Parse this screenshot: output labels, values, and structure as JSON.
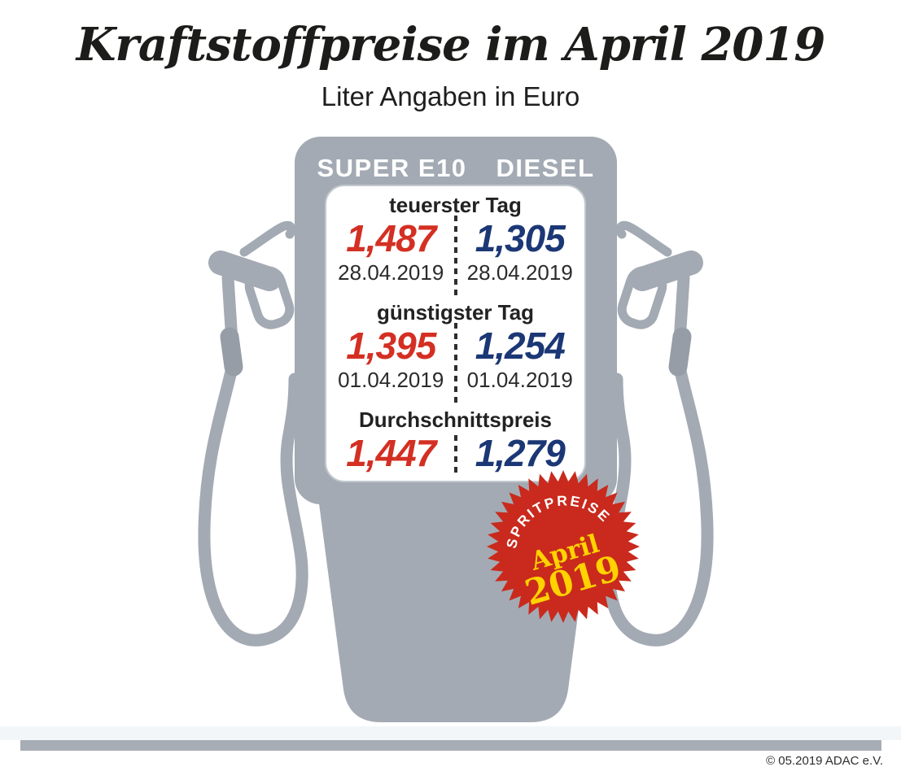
{
  "title": "Kraftstoffpreise im April 2019",
  "subtitle": "Liter Angaben in Euro",
  "pump": {
    "col_left": "SUPER E10",
    "col_right": "DIESEL",
    "sections": [
      {
        "label": "teuerster Tag",
        "e10": "1,487",
        "diesel": "1,305",
        "e10_date": "28.04.2019",
        "diesel_date": "28.04.2019"
      },
      {
        "label": "günstigster Tag",
        "e10": "1,395",
        "diesel": "1,254",
        "e10_date": "01.04.2019",
        "diesel_date": "01.04.2019"
      },
      {
        "label": "Durchschnittspreis",
        "e10": "1,447",
        "diesel": "1,279"
      }
    ]
  },
  "badge": {
    "arc_text": "SPRITPREISE",
    "line1": "April",
    "line2": "2019"
  },
  "footer": {
    "copyright": "© 05.2019 ADAC e.V."
  },
  "colors": {
    "super_e10_red": "#d42f23",
    "diesel_blue": "#1b3775",
    "pump_gray": "#a3aab3",
    "badge_red": "#c92a1d",
    "badge_yellow": "#ffd200",
    "footer_bar_gray": "#a7adb5"
  },
  "icons": [
    "fuel-pump-icon",
    "fuel-nozzle-icon",
    "starburst-badge-icon"
  ],
  "chart_data": {
    "type": "table",
    "title": "Kraftstoffpreise im April 2019",
    "subtitle": "Liter Angaben in Euro",
    "unit": "Euro",
    "columns": [
      "SUPER E10",
      "DIESEL"
    ],
    "rows": [
      {
        "label": "teuerster Tag",
        "super_e10": 1.487,
        "diesel": 1.305,
        "super_e10_date": "28.04.2019",
        "diesel_date": "28.04.2019"
      },
      {
        "label": "günstigster Tag",
        "super_e10": 1.395,
        "diesel": 1.254,
        "super_e10_date": "01.04.2019",
        "diesel_date": "01.04.2019"
      },
      {
        "label": "Durchschnittspreis",
        "super_e10": 1.447,
        "diesel": 1.279
      }
    ]
  }
}
